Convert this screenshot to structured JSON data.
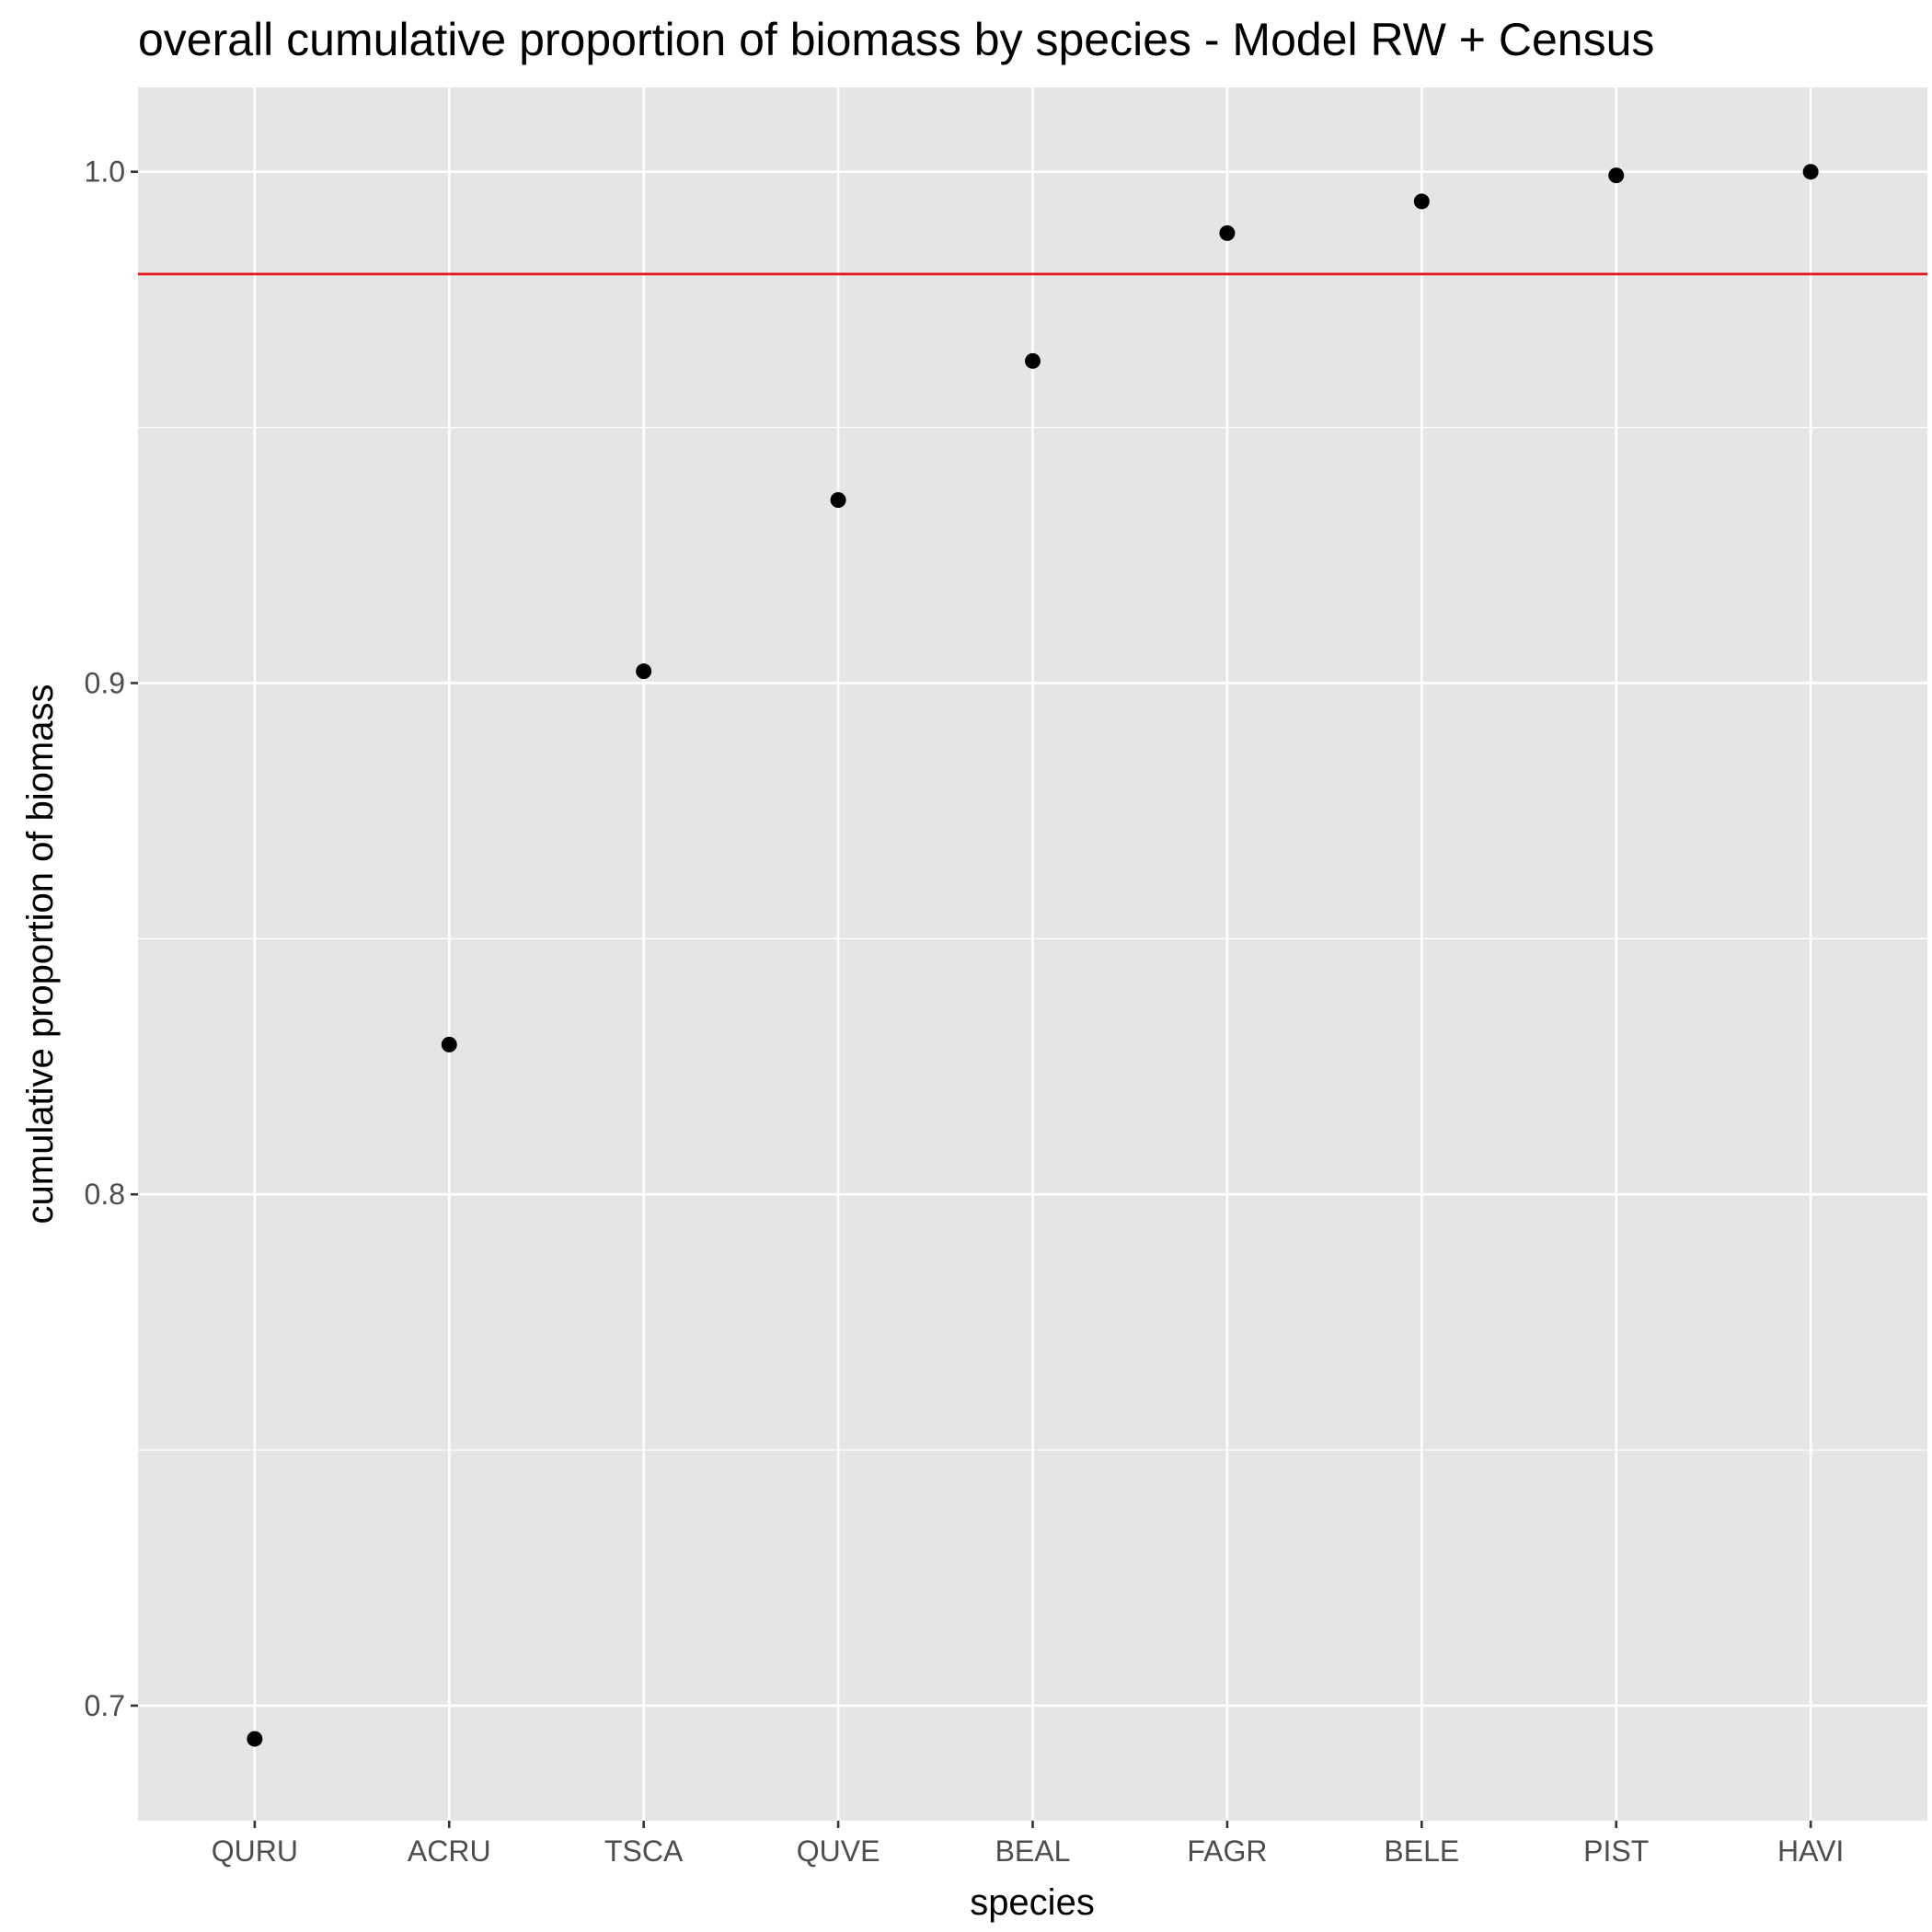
{
  "chart_data": {
    "type": "scatter",
    "title": "overall cumulative proportion of biomass by species - Model RW + Census",
    "xlabel": "species",
    "ylabel": "cumulative proportion of biomass",
    "categories": [
      "QURU",
      "ACRU",
      "TSCA",
      "QUVE",
      "BEAL",
      "FAGR",
      "BELE",
      "PIST",
      "HAVI"
    ],
    "series": [
      {
        "values": [
          0.6935,
          0.8293,
          0.9023,
          0.9358,
          0.963,
          0.988,
          0.9942,
          0.9993,
          1.0
        ]
      }
    ],
    "reference_line": {
      "y": 0.98,
      "color": "#e8141c"
    },
    "ylim": [
      0.6775,
      1.0165
    ],
    "yticks": [
      0.7,
      0.8,
      0.9,
      1.0
    ],
    "ytick_labels": [
      "0.7",
      "0.8",
      "0.9",
      "1.0"
    ],
    "grid": true,
    "legend": "none",
    "colors": {
      "panel_background": "#e5e5e5",
      "grid": "#ffffff",
      "point": "#000000",
      "tick_text": "#4d4d4d"
    }
  }
}
